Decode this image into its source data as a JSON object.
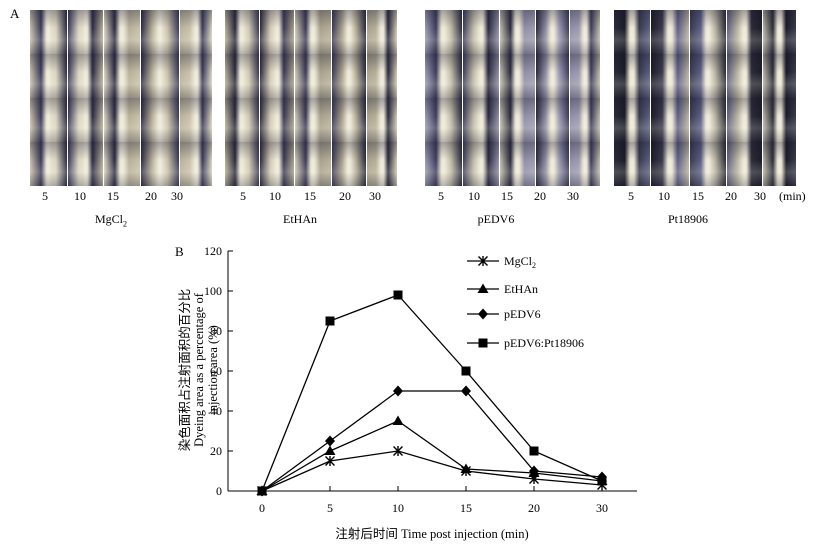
{
  "panel_a": {
    "label": "A",
    "groups": [
      {
        "name": "MgCl",
        "name_sub": "2",
        "times": [
          "5",
          "10",
          "15",
          "20",
          "30"
        ]
      },
      {
        "name": "EtHAn",
        "times": [
          "5",
          "10",
          "15",
          "20",
          "30"
        ]
      },
      {
        "name": "pEDV6",
        "times": [
          "5",
          "10",
          "15",
          "20",
          "30"
        ]
      },
      {
        "name": "Pt18906",
        "times": [
          "5",
          "10",
          "15",
          "20",
          "30"
        ]
      }
    ],
    "unit": "(min)"
  },
  "panel_b": {
    "label": "B"
  },
  "chart_data": {
    "type": "line",
    "x": [
      0,
      5,
      10,
      15,
      20,
      30
    ],
    "xlabel": "注射后时间 Time post  injection (min)",
    "ylabel_cn": "染色面积占注射面积的百分比",
    "ylabel_en": "Dyeing area as a percentage of",
    "ylabel_en2": "injection area (%)",
    "ylim": [
      0,
      120
    ],
    "yticks": [
      "0",
      "20",
      "40",
      "60",
      "80",
      "100",
      "120"
    ],
    "xticks": [
      "0",
      "5",
      "10",
      "15",
      "20",
      "30"
    ],
    "legend_position": "top-right",
    "series": [
      {
        "name": "MgCl2",
        "legend_label": "MgCl",
        "legend_sub": "2",
        "marker": "star",
        "values": [
          0,
          15,
          20,
          10,
          6,
          3
        ]
      },
      {
        "name": "EtHAn",
        "legend_label": "EtHAn",
        "marker": "triangle",
        "values": [
          0,
          20,
          35,
          11,
          9,
          5
        ]
      },
      {
        "name": "pEDV6",
        "legend_label": "pEDV6",
        "marker": "diamond",
        "values": [
          0,
          25,
          50,
          50,
          10,
          7
        ]
      },
      {
        "name": "pEDV6:Pt18906",
        "legend_label": "pEDV6:Pt18906",
        "marker": "square",
        "values": [
          0,
          85,
          98,
          60,
          20,
          5
        ]
      }
    ]
  }
}
